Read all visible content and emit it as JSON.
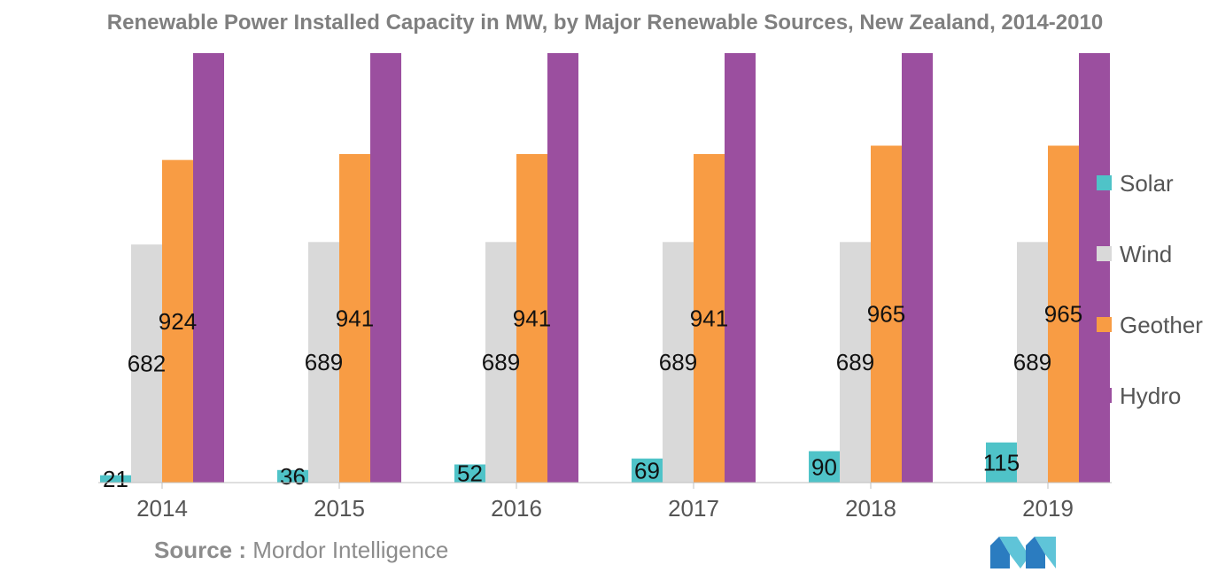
{
  "chart_data": {
    "type": "bar",
    "title": "Renewable Power Installed Capacity in MW, by Major Renewable Sources, New Zealand, 2014-2010",
    "xlabel": "",
    "ylabel": "",
    "categories": [
      "2014",
      "2015",
      "2016",
      "2017",
      "2018",
      "2019"
    ],
    "series": [
      {
        "name": "Solar",
        "color": "#4fc3c8",
        "values": [
          21,
          36,
          52,
          69,
          90,
          115
        ],
        "labels": [
          "21",
          "36",
          "52",
          "69",
          "90",
          "115"
        ]
      },
      {
        "name": "Wind",
        "color": "#d9d9d9",
        "values": [
          682,
          689,
          689,
          689,
          689,
          689
        ],
        "labels": [
          "682",
          "689",
          "689",
          "689",
          "689",
          "689"
        ]
      },
      {
        "name": "Geothermal",
        "color": "#f89c44",
        "values": [
          924,
          941,
          941,
          941,
          965,
          965
        ],
        "labels": [
          "924",
          "941",
          "941",
          "941",
          "965",
          "965"
        ]
      },
      {
        "name": "Hydro",
        "color": "#9b4f9f",
        "values": [
          1230,
          1230,
          1230,
          1230,
          1230,
          1230
        ],
        "labels": []
      }
    ],
    "legend_labels": [
      "Solar",
      "Wind",
      "Geother",
      "Hydro"
    ],
    "ylim": [
      0,
      1230
    ],
    "grid": false,
    "legend_position": "right"
  },
  "source": {
    "label": "Source :",
    "text": " Mordor Intelligence"
  }
}
